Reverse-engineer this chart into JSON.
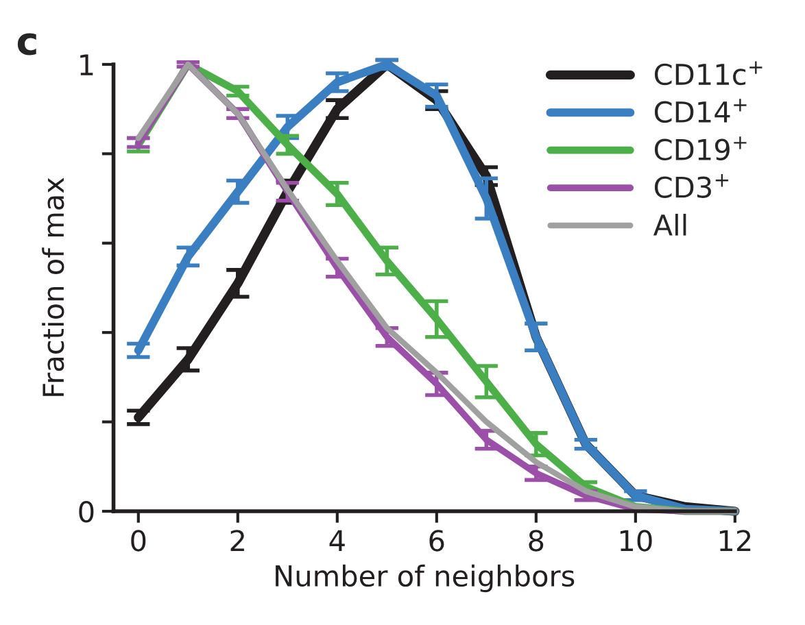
{
  "chart_data": {
    "type": "line",
    "xlabel": "Number of neighbors",
    "ylabel": "Fraction of max",
    "annotations": [
      "c"
    ],
    "x": [
      0,
      1,
      2,
      3,
      4,
      5,
      6,
      7,
      8,
      9,
      10,
      11,
      12
    ],
    "xlim": [
      -0.5,
      12
    ],
    "xticks": [
      0,
      2,
      4,
      6,
      8,
      10,
      12
    ],
    "ylim": [
      0,
      1
    ],
    "yticks": [
      0,
      {
        "value": 0.2,
        "label": null
      },
      {
        "value": 0.4,
        "label": null
      },
      {
        "value": 0.6,
        "label": null
      },
      {
        "value": 0.8,
        "label": null
      },
      1
    ],
    "grid": false,
    "legend": "top right",
    "marker": "none",
    "line_style": "solid",
    "series": [
      {
        "name": "CD11c$^{+}$",
        "color": "#231f20",
        "values": [
          0.21,
          0.34,
          0.51,
          0.715,
          0.9,
          1.0,
          0.92,
          0.75,
          0.39,
          0.15,
          0.035,
          0.01,
          0
        ],
        "errors": [
          0.015,
          0.025,
          0.03,
          0.025,
          0.02,
          0.01,
          0.02,
          0.02,
          null,
          null,
          null,
          null,
          null
        ]
      },
      {
        "name": "CD14$^{+}$",
        "color": "#3a7fc1",
        "values": [
          0.36,
          0.57,
          0.715,
          0.86,
          0.96,
          1.0,
          0.93,
          0.7,
          0.39,
          0.15,
          0.035,
          0.005,
          0
        ],
        "errors": [
          0.015,
          0.02,
          0.025,
          0.025,
          0.02,
          0.01,
          0.025,
          0.045,
          0.03,
          0.01,
          0.01,
          null,
          null
        ]
      },
      {
        "name": "CD19$^{+}$",
        "color": "#4caf48",
        "values": [
          0.82,
          1.0,
          0.94,
          0.82,
          0.71,
          0.56,
          0.43,
          0.29,
          0.15,
          0.055,
          0.01,
          0,
          0
        ],
        "errors": [
          0.015,
          null,
          0.01,
          0.02,
          0.025,
          0.03,
          0.04,
          0.035,
          0.025,
          0.01,
          null,
          null,
          null
        ]
      },
      {
        "name": "CD3$^{+}$",
        "color": "#9b4fa8",
        "values": [
          0.825,
          1.0,
          0.89,
          0.715,
          0.545,
          0.39,
          0.285,
          0.16,
          0.085,
          0.035,
          0.005,
          0,
          0
        ],
        "errors": [
          0.01,
          0.005,
          0.01,
          0.02,
          0.02,
          0.02,
          0.025,
          0.02,
          0.015,
          0.01,
          null,
          null,
          null
        ]
      },
      {
        "name": "All",
        "color": "#a0a0a0",
        "values": [
          0.835,
          1.0,
          0.89,
          0.72,
          0.56,
          0.41,
          0.31,
          0.2,
          0.11,
          0.045,
          0.01,
          0,
          0
        ]
      }
    ]
  }
}
